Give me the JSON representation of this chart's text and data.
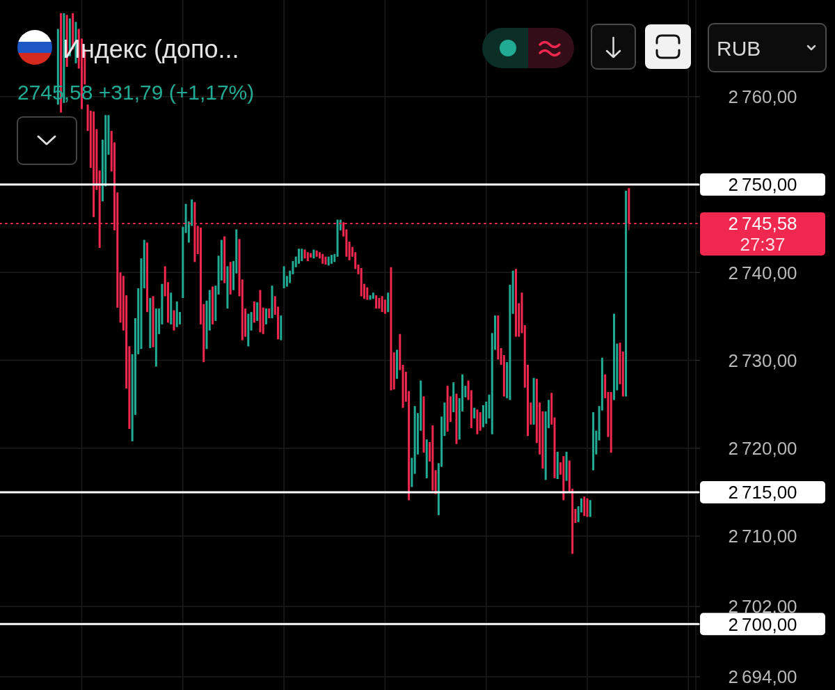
{
  "chart_data": {
    "type": "candlestick",
    "title": "Индекс (допо...",
    "subtitle": "2745,58 +31,79 (+1,17%)",
    "ylabel": "RUB",
    "categories": [
      null,
      null,
      null,
      null,
      null,
      null,
      null,
      null,
      null,
      null,
      null,
      null,
      null,
      null,
      null,
      null,
      null,
      null,
      null,
      null,
      null,
      null,
      null,
      null,
      null,
      null,
      null,
      null,
      null,
      null,
      null,
      null,
      null,
      null,
      null,
      null,
      null,
      null,
      null,
      null,
      null,
      null,
      null,
      null,
      null,
      null,
      null,
      null,
      null,
      null,
      null,
      null,
      null,
      null,
      null,
      null,
      null,
      null,
      null,
      null,
      null,
      null,
      null,
      null,
      null,
      null,
      null,
      null,
      null,
      null,
      null,
      null,
      null,
      null,
      null,
      null,
      null,
      null,
      null,
      null,
      null,
      null,
      null,
      null,
      null,
      null,
      null,
      null,
      null,
      null,
      null,
      null,
      null,
      null,
      null,
      null,
      null,
      null,
      null,
      null,
      null,
      null,
      null,
      null,
      null,
      null,
      null,
      null,
      null,
      null,
      null,
      null,
      null,
      null,
      null,
      null,
      null,
      null,
      null,
      null,
      null,
      null,
      null,
      null,
      null,
      null,
      null,
      null,
      null,
      null,
      null,
      null,
      null,
      null,
      null,
      null,
      null,
      null,
      null,
      null,
      null,
      null,
      null,
      null,
      null,
      null,
      null,
      null,
      null,
      null,
      null,
      null,
      null,
      null,
      null,
      null,
      null,
      null,
      null,
      null,
      null,
      null,
      null,
      null,
      null,
      null,
      null,
      null,
      null,
      null,
      null,
      null,
      null,
      null,
      null,
      null,
      null,
      null,
      null,
      null,
      null,
      null,
      null,
      null,
      null,
      null,
      null,
      null,
      null,
      null,
      null,
      null,
      null,
      null,
      null,
      null,
      null,
      null,
      null,
      null,
      null,
      null,
      null,
      null,
      null,
      null,
      null,
      null,
      null,
      null,
      null,
      null,
      null,
      null,
      null,
      null,
      null,
      null,
      null,
      null,
      null,
      null,
      null,
      null,
      null,
      null,
      null,
      null,
      null,
      null,
      null,
      null,
      null,
      null
    ],
    "ohlc": [
      null,
      null,
      null,
      null,
      null,
      null,
      null,
      null,
      null,
      null,
      null,
      null,
      null,
      null,
      null,
      null,
      null,
      null,
      null,
      [
        2759.1,
        2767.7,
        2759.1,
        2767.7
      ],
      [
        2769.5,
        2769.5,
        2758.2,
        2758.2
      ],
      [
        2759.3,
        2769.5,
        2759.3,
        2769.5
      ],
      [
        2769.3,
        2769.3,
        2763.4,
        2763.4
      ],
      [
        2764.6,
        2768.9,
        2764.6,
        2768.9
      ],
      [
        2769.5,
        2769.5,
        2765.4,
        2765.4
      ],
      [
        2763.8,
        2768.5,
        2763.8,
        2768.5
      ],
      [
        2767.7,
        2767.7,
        2763.2,
        2763.2
      ],
      [
        2766.6,
        2766.6,
        2758.6,
        2758.6
      ],
      [
        2765.4,
        2765.4,
        2761.4,
        2761.4
      ],
      [
        2759.1,
        2759.1,
        2756.1,
        2756.1
      ],
      [
        2758.4,
        2758.4,
        2751.9,
        2751.9
      ],
      [
        2758.3,
        2758.3,
        2746.3,
        2746.3
      ],
      [
        2756.3,
        2756.3,
        2749.4,
        2749.4
      ],
      [
        2751.6,
        2751.6,
        2742.8,
        2742.8
      ],
      [
        2748.1,
        2755.1,
        2748.1,
        2755.1
      ],
      [
        2749.8,
        2757.9,
        2749.8,
        2757.9
      ],
      [
        2753.4,
        2757.9,
        2753.4,
        2757.9
      ],
      [
        2756.1,
        2756.1,
        2751.5,
        2751.5
      ],
      [
        2754.8,
        2754.8,
        2744.8,
        2744.8
      ],
      [
        2749.1,
        2749.1,
        2736.0,
        2736.0
      ],
      [
        2740.0,
        2740.0,
        2734.3,
        2734.3
      ],
      [
        2739.6,
        2739.6,
        2733.4,
        2733.4
      ],
      [
        2737.4,
        2737.4,
        2726.8,
        2726.8
      ],
      [
        2731.6,
        2731.6,
        2722.2,
        2722.2
      ],
      [
        2720.8,
        2730.7,
        2720.8,
        2730.7
      ],
      [
        2723.8,
        2734.8,
        2723.8,
        2734.8
      ],
      [
        2730.7,
        2738.2,
        2730.7,
        2738.2
      ],
      [
        2731.3,
        2741.6,
        2731.3,
        2741.6
      ],
      [
        2738.2,
        2743.7,
        2738.2,
        2743.7
      ],
      [
        2743.4,
        2743.4,
        2735.5,
        2735.5
      ],
      [
        2731.4,
        2737.1,
        2731.4,
        2737.1
      ],
      [
        2737.3,
        2737.3,
        2731.5,
        2731.5
      ],
      [
        2729.3,
        2735.9,
        2729.3,
        2735.9
      ],
      [
        2733.0,
        2735.9,
        2733.0,
        2735.9
      ],
      [
        2734.1,
        2738.7,
        2734.1,
        2738.7
      ],
      [
        2740.7,
        2740.7,
        2737.3,
        2737.3
      ],
      [
        2738.9,
        2738.9,
        2734.3,
        2734.3
      ],
      [
        2734.1,
        2737.7,
        2734.1,
        2737.7
      ],
      [
        2735.7,
        2735.7,
        2733.4,
        2733.4
      ],
      [
        2733.8,
        2736.7,
        2733.8,
        2736.7
      ],
      [
        2734.1,
        2735.5,
        2734.1,
        2735.5
      ],
      [
        2737.1,
        2745.2,
        2737.1,
        2745.2
      ],
      [
        2744.5,
        2747.8,
        2744.5,
        2747.8
      ],
      [
        2743.4,
        2745.8,
        2743.4,
        2745.8
      ],
      [
        2745.3,
        2748.3,
        2745.3,
        2748.3
      ],
      [
        2748.0,
        2748.0,
        2741.2,
        2741.2
      ],
      [
        2745.3,
        2745.3,
        2742.1,
        2742.1
      ],
      [
        2745.1,
        2745.1,
        2734.1,
        2734.1
      ],
      [
        2736.4,
        2736.4,
        2729.8,
        2729.8
      ],
      [
        2731.3,
        2736.8,
        2731.3,
        2736.8
      ],
      [
        2733.4,
        2738.0,
        2733.4,
        2738.0
      ],
      [
        2738.4,
        2738.4,
        2734.1,
        2734.1
      ],
      [
        2734.5,
        2738.5,
        2734.5,
        2738.5
      ],
      [
        2737.5,
        2741.9,
        2737.5,
        2741.9
      ],
      [
        2739.1,
        2743.7,
        2739.1,
        2743.7
      ],
      [
        2744.1,
        2744.1,
        2738.8,
        2738.8
      ],
      [
        2735.9,
        2740.7,
        2735.9,
        2740.7
      ],
      [
        2741.2,
        2741.2,
        2737.5,
        2737.5
      ],
      [
        2738.0,
        2741.3,
        2738.0,
        2741.3
      ],
      [
        2739.9,
        2744.9,
        2739.9,
        2744.9
      ],
      [
        2743.8,
        2743.8,
        2737.3,
        2737.3
      ],
      [
        2739.2,
        2739.2,
        2732.3,
        2732.3
      ],
      [
        2735.9,
        2735.9,
        2732.7,
        2732.7
      ],
      [
        2731.6,
        2735.3,
        2731.6,
        2735.3
      ],
      [
        2733.4,
        2735.5,
        2733.4,
        2735.5
      ],
      [
        2736.7,
        2736.7,
        2734.3,
        2734.3
      ],
      [
        2734.5,
        2736.6,
        2734.5,
        2736.6
      ],
      [
        2738.0,
        2738.0,
        2733.2,
        2733.2
      ],
      [
        2736.0,
        2736.0,
        2733.0,
        2733.0
      ],
      [
        2734.1,
        2735.9,
        2734.1,
        2735.9
      ],
      [
        2735.9,
        2735.9,
        2734.8,
        2734.8
      ],
      [
        2734.8,
        2738.5,
        2734.8,
        2738.5
      ],
      [
        2737.3,
        2737.3,
        2735.2,
        2735.2
      ],
      [
        2736.1,
        2736.1,
        2732.4,
        2732.4
      ],
      [
        2732.3,
        2735.1,
        2732.3,
        2735.1
      ],
      [
        2738.2,
        2740.7,
        2738.2,
        2740.7
      ],
      [
        2738.4,
        2739.6,
        2738.4,
        2739.6
      ],
      [
        2738.8,
        2740.2,
        2738.8,
        2740.2
      ],
      [
        2739.8,
        2741.3,
        2739.8,
        2741.3
      ],
      [
        2740.6,
        2741.8,
        2740.6,
        2741.8
      ],
      [
        2741.0,
        2742.7,
        2741.0,
        2742.7
      ],
      [
        2741.3,
        2742.7,
        2741.3,
        2742.7
      ],
      [
        2742.6,
        2742.6,
        2741.6,
        2741.6
      ],
      [
        2742.3,
        2742.3,
        2741.3,
        2741.3
      ],
      [
        2742.2,
        2742.2,
        2741.7,
        2741.7
      ],
      [
        2741.6,
        2742.6,
        2741.6,
        2742.6
      ],
      [
        2742.5,
        2742.5,
        2741.8,
        2741.8
      ],
      [
        2742.3,
        2742.3,
        2741.6,
        2741.6
      ],
      [
        2742.1,
        2742.1,
        2741.0,
        2741.0
      ],
      [
        2741.8,
        2741.8,
        2740.9,
        2740.9
      ],
      [
        2740.8,
        2741.8,
        2740.8,
        2741.8
      ],
      [
        2741.0,
        2742.0,
        2741.0,
        2742.0
      ],
      [
        2741.2,
        2742.1,
        2741.2,
        2742.1
      ],
      [
        2741.8,
        2746.0,
        2741.8,
        2746.0
      ],
      [
        2744.8,
        2746.0,
        2744.8,
        2746.0
      ],
      [
        2745.7,
        2745.7,
        2744.1,
        2744.1
      ],
      [
        2744.9,
        2744.9,
        2741.8,
        2741.8
      ],
      [
        2743.5,
        2743.5,
        2741.4,
        2741.4
      ],
      [
        2742.9,
        2742.9,
        2741.8,
        2741.8
      ],
      [
        2742.3,
        2742.3,
        2740.4,
        2740.4
      ],
      [
        2740.9,
        2740.9,
        2739.8,
        2739.8
      ],
      [
        2740.5,
        2740.5,
        2737.3,
        2737.3
      ],
      [
        2738.7,
        2738.7,
        2737.0,
        2737.0
      ],
      [
        2738.3,
        2738.3,
        2736.9,
        2736.9
      ],
      [
        2736.9,
        2737.4,
        2736.9,
        2737.4
      ],
      [
        2737.0,
        2737.7,
        2737.0,
        2737.7
      ],
      [
        2737.4,
        2737.4,
        2735.9,
        2735.9
      ],
      [
        2737.1,
        2737.1,
        2735.9,
        2735.9
      ],
      [
        2737.3,
        2737.3,
        2735.5,
        2735.5
      ],
      [
        2736.9,
        2736.9,
        2735.3,
        2735.3
      ],
      [
        2735.5,
        2737.7,
        2735.5,
        2737.7
      ],
      [
        2740.6,
        2740.6,
        2726.6,
        2726.6
      ],
      [
        2730.9,
        2730.9,
        2726.7,
        2726.7
      ],
      [
        2727.9,
        2731.2,
        2727.9,
        2731.2
      ],
      [
        2733.0,
        2733.0,
        2728.9,
        2728.9
      ],
      [
        2729.5,
        2729.5,
        2724.6,
        2724.6
      ],
      [
        2728.7,
        2728.7,
        2725.3,
        2725.3
      ],
      [
        2726.5,
        2726.5,
        2714.1,
        2714.1
      ],
      [
        2715.6,
        2718.9,
        2715.6,
        2718.9
      ],
      [
        2717.1,
        2724.8,
        2717.1,
        2724.8
      ],
      [
        2719.3,
        2724.0,
        2719.3,
        2724.0
      ],
      [
        2722.0,
        2727.7,
        2722.0,
        2727.7
      ],
      [
        2725.9,
        2725.9,
        2719.5,
        2719.5
      ],
      [
        2716.6,
        2721.0,
        2716.6,
        2721.0
      ],
      [
        2720.7,
        2720.7,
        2718.5,
        2718.5
      ],
      [
        2722.6,
        2722.6,
        2715.2,
        2715.2
      ],
      [
        2717.5,
        2717.5,
        2714.8,
        2714.8
      ],
      [
        2712.4,
        2718.3,
        2712.4,
        2718.3
      ],
      [
        2717.9,
        2723.6,
        2717.9,
        2723.6
      ],
      [
        2721.4,
        2725.2,
        2721.4,
        2725.2
      ],
      [
        2727.1,
        2727.1,
        2721.9,
        2721.9
      ],
      [
        2725.9,
        2725.9,
        2723.0,
        2723.0
      ],
      [
        2724.1,
        2727.5,
        2724.1,
        2727.5
      ],
      [
        2726.2,
        2726.2,
        2720.5,
        2720.5
      ],
      [
        2721.0,
        2725.7,
        2721.0,
        2725.7
      ],
      [
        2724.2,
        2728.4,
        2724.2,
        2728.4
      ],
      [
        2725.8,
        2727.1,
        2725.8,
        2727.1
      ],
      [
        2727.7,
        2727.7,
        2725.5,
        2725.5
      ],
      [
        2726.6,
        2726.6,
        2722.3,
        2722.3
      ],
      [
        2723.4,
        2724.6,
        2723.4,
        2724.6
      ],
      [
        2724.4,
        2724.4,
        2721.6,
        2721.6
      ],
      [
        2724.1,
        2724.1,
        2722.0,
        2722.0
      ],
      [
        2722.4,
        2724.9,
        2722.4,
        2724.9
      ],
      [
        2722.8,
        2725.3,
        2722.8,
        2725.3
      ],
      [
        2723.4,
        2726.1,
        2723.4,
        2726.1
      ],
      [
        2721.6,
        2733.1,
        2721.6,
        2733.1
      ],
      [
        2731.2,
        2735.1,
        2731.2,
        2735.1
      ],
      [
        2735.1,
        2735.1,
        2730.1,
        2730.1
      ],
      [
        2731.4,
        2731.4,
        2729.5,
        2729.5
      ],
      [
        2730.6,
        2730.6,
        2725.9,
        2725.9
      ],
      [
        2725.7,
        2729.8,
        2725.7,
        2729.8
      ],
      [
        2725.5,
        2738.6,
        2725.5,
        2738.6
      ],
      [
        2735.3,
        2740.2,
        2735.3,
        2740.2
      ],
      [
        2740.4,
        2740.4,
        2732.7,
        2732.7
      ],
      [
        2736.5,
        2736.5,
        2732.7,
        2732.7
      ],
      [
        2737.7,
        2737.7,
        2733.1,
        2733.1
      ],
      [
        2734.0,
        2734.0,
        2726.9,
        2726.9
      ],
      [
        2729.5,
        2729.5,
        2721.4,
        2721.4
      ],
      [
        2725.2,
        2725.2,
        2722.7,
        2722.7
      ],
      [
        2722.7,
        2728.0,
        2722.7,
        2728.0
      ],
      [
        2727.9,
        2727.9,
        2720.6,
        2720.6
      ],
      [
        2725.2,
        2725.2,
        2719.3,
        2719.3
      ],
      [
        2724.2,
        2724.2,
        2717.7,
        2717.7
      ],
      [
        2716.4,
        2724.2,
        2716.4,
        2724.2
      ],
      [
        2722.3,
        2725.5,
        2722.3,
        2725.5
      ],
      [
        2726.3,
        2726.3,
        2722.7,
        2722.7
      ],
      [
        2723.5,
        2723.5,
        2716.6,
        2716.6
      ],
      [
        2716.5,
        2719.6,
        2716.5,
        2719.6
      ],
      [
        2718.4,
        2718.4,
        2717.0,
        2717.0
      ],
      [
        2719.1,
        2719.1,
        2714.1,
        2714.1
      ],
      [
        2716.3,
        2719.6,
        2716.3,
        2719.6
      ],
      [
        2718.6,
        2718.6,
        2715.0,
        2715.0
      ],
      [
        2715.4,
        2715.4,
        2708.0,
        2708.0
      ],
      [
        2713.1,
        2713.1,
        2711.5,
        2711.5
      ],
      [
        2711.6,
        2713.4,
        2711.6,
        2713.4
      ],
      [
        2712.7,
        2714.3,
        2712.7,
        2714.3
      ],
      [
        2714.5,
        2714.5,
        2712.3,
        2712.3
      ],
      [
        2714.3,
        2714.3,
        2712.2,
        2712.2
      ],
      [
        2712.2,
        2714.1,
        2712.2,
        2714.1
      ],
      [
        2717.5,
        2724.1,
        2717.5,
        2724.1
      ],
      [
        2719.3,
        2722.0,
        2719.3,
        2722.0
      ],
      [
        2720.9,
        2724.8,
        2720.9,
        2724.8
      ],
      [
        2724.3,
        2730.3,
        2724.3,
        2730.3
      ],
      [
        2728.4,
        2728.4,
        2725.7,
        2725.7
      ],
      [
        2726.4,
        2726.4,
        2721.3,
        2721.3
      ],
      [
        2726.4,
        2726.4,
        2719.5,
        2719.5
      ],
      [
        2725.5,
        2735.3,
        2725.5,
        2735.3
      ],
      [
        2726.6,
        2731.9,
        2726.6,
        2731.9
      ],
      [
        2732.0,
        2732.0,
        2727.3,
        2727.3
      ],
      [
        2731.0,
        2731.0,
        2725.9,
        2725.9
      ],
      [
        2725.9,
        2749.3,
        2725.9,
        2749.3
      ],
      [
        2749.6,
        2749.6,
        2744.8,
        2745.58
      ],
      null,
      null,
      null,
      null,
      null,
      null,
      null,
      null,
      null,
      null,
      null,
      null,
      null,
      null,
      null,
      null,
      null,
      null,
      null,
      null,
      null,
      null
    ],
    "colors": [
      null,
      null,
      null,
      null,
      null,
      null,
      null,
      null,
      null,
      null,
      null,
      null,
      null,
      null,
      null,
      null,
      null,
      null,
      null,
      "#22ab94",
      "#f0274e",
      "#22ab94",
      "#f0274e",
      "#22ab94",
      "#f0274e",
      "#22ab94",
      "#f0274e",
      "#f0274e",
      "#f0274e",
      "#f0274e",
      "#f0274e",
      "#f0274e",
      "#f0274e",
      "#f0274e",
      "#22ab94",
      "#22ab94",
      "#22ab94",
      "#f0274e",
      "#f0274e",
      "#f0274e",
      "#f0274e",
      "#f0274e",
      "#f0274e",
      "#f0274e",
      "#22ab94",
      "#22ab94",
      "#22ab94",
      "#22ab94",
      "#22ab94",
      "#f0274e",
      "#22ab94",
      "#f0274e",
      "#22ab94",
      "#22ab94",
      "#22ab94",
      "#f0274e",
      "#f0274e",
      "#22ab94",
      "#f0274e",
      "#22ab94",
      "#22ab94",
      "#22ab94",
      "#22ab94",
      "#22ab94",
      "#22ab94",
      "#f0274e",
      "#f0274e",
      "#f0274e",
      "#f0274e",
      "#22ab94",
      "#22ab94",
      "#f0274e",
      "#22ab94",
      "#22ab94",
      "#22ab94",
      "#f0274e",
      "#22ab94",
      "#f0274e",
      "#22ab94",
      "#22ab94",
      "#f0274e",
      "#f0274e",
      "#f0274e",
      "#22ab94",
      "#22ab94",
      "#f0274e",
      "#22ab94",
      "#f0274e",
      "#f0274e",
      "#22ab94",
      "#f0274e",
      "#22ab94",
      "#f0274e",
      "#f0274e",
      "#22ab94",
      "#22ab94",
      "#22ab94",
      "#22ab94",
      "#22ab94",
      "#22ab94",
      "#22ab94",
      "#22ab94",
      "#f0274e",
      "#f0274e",
      "#f0274e",
      "#22ab94",
      "#f0274e",
      "#f0274e",
      "#f0274e",
      "#f0274e",
      "#22ab94",
      "#22ab94",
      "#22ab94",
      "#22ab94",
      "#22ab94",
      "#f0274e",
      "#f0274e",
      "#f0274e",
      "#f0274e",
      "#f0274e",
      "#f0274e",
      "#f0274e",
      "#f0274e",
      "#f0274e",
      "#22ab94",
      "#22ab94",
      "#f0274e",
      "#f0274e",
      "#f0274e",
      "#f0274e",
      "#22ab94",
      "#f0274e",
      "#f0274e",
      "#22ab94",
      "#f0274e",
      "#f0274e",
      "#f0274e",
      "#f0274e",
      "#22ab94",
      "#22ab94",
      "#22ab94",
      "#22ab94",
      "#f0274e",
      "#22ab94",
      "#f0274e",
      "#f0274e",
      "#f0274e",
      "#22ab94",
      "#22ab94",
      "#22ab94",
      "#f0274e",
      "#f0274e",
      "#22ab94",
      "#f0274e",
      "#22ab94",
      "#22ab94",
      "#22ab94",
      "#f0274e",
      "#f0274e",
      "#22ab94",
      "#f0274e",
      "#f0274e",
      "#22ab94",
      "#22ab94",
      "#22ab94",
      "#22ab94",
      "#22ab94",
      "#f0274e",
      "#f0274e",
      "#f0274e",
      "#22ab94",
      "#22ab94",
      "#22ab94",
      "#f0274e",
      "#f0274e",
      "#f0274e",
      "#f0274e",
      "#f0274e",
      "#f0274e",
      "#22ab94",
      "#f0274e",
      "#f0274e",
      "#f0274e",
      "#22ab94",
      "#22ab94",
      "#f0274e",
      "#f0274e",
      "#22ab94",
      "#f0274e",
      "#f0274e",
      "#22ab94",
      "#f0274e",
      "#f0274e",
      "#f0274e",
      "#22ab94",
      "#22ab94",
      "#f0274e",
      "#f0274e",
      "#22ab94",
      "#22ab94",
      "#22ab94",
      "#22ab94",
      "#22ab94",
      "#f0274e",
      "#f0274e",
      "#f0274e",
      "#22ab94",
      "#22ab94",
      "#f0274e",
      "#f0274e",
      "#22ab94",
      "#f0274e",
      null,
      null,
      null,
      null,
      null,
      null,
      null,
      null,
      null,
      null,
      null,
      null,
      null,
      null,
      null,
      null,
      null,
      null,
      null,
      null,
      null,
      null
    ],
    "ylim": [
      2692.5,
      2771
    ],
    "yticks": [
      {
        "value": 2694,
        "label": "2 694,00"
      },
      {
        "value": 2702,
        "label": "2 702,00"
      },
      {
        "value": 2710,
        "label": "2 710,00"
      },
      {
        "value": 2720,
        "label": "2 720,00"
      },
      {
        "value": 2730,
        "label": "2 730,00"
      },
      {
        "value": 2740,
        "label": "2 740,00"
      },
      {
        "value": 2760,
        "label": "2 760,00"
      }
    ],
    "grid": true,
    "tick_labels": "y",
    "ref_lines": [
      {
        "axis": "y",
        "value": 2750,
        "label": "2 750,00",
        "color": "#ffffff"
      },
      {
        "axis": "y",
        "value": 2745.58,
        "label": "2 745,58",
        "color": "#f0274e",
        "line_style": "dotted"
      },
      {
        "axis": "y",
        "value": 2715,
        "label": "2 715,00",
        "color": "#ffffff"
      },
      {
        "axis": "y",
        "value": 2700,
        "label": "2 700,00",
        "color": "#ffffff"
      }
    ],
    "annotations": [
      "27:37"
    ]
  }
}
